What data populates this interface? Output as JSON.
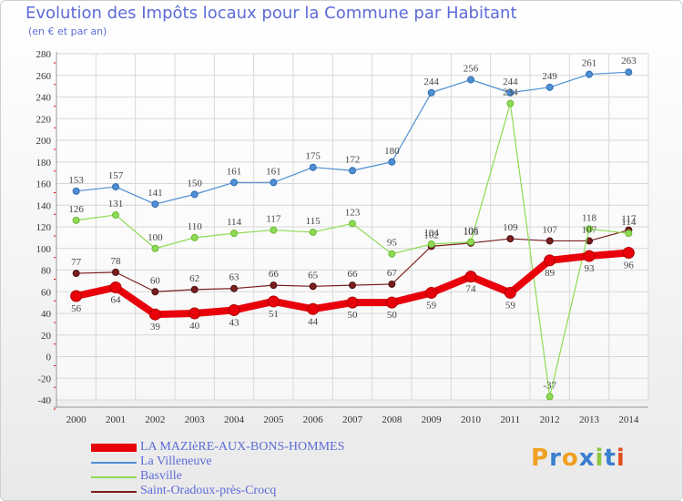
{
  "header": {
    "title": "Evolution des Impôts locaux pour la Commune par Habitant",
    "subtitle": "(en € et par an)"
  },
  "logo": {
    "text": "Proxiti",
    "letters": [
      "P",
      "r",
      "o",
      "x",
      "i",
      "t",
      "i"
    ],
    "colors": [
      "#f0a020",
      "#3a7fd0",
      "#f0a020",
      "#3a7fd0",
      "#8cc63f",
      "#3a7fd0",
      "#e05020"
    ]
  },
  "chart_data": {
    "type": "line",
    "title": "Evolution des Impôts locaux pour la Commune par Habitant",
    "subtitle": "(en € et par an)",
    "xlabel": "",
    "ylabel": "",
    "ylim": [
      -40,
      280
    ],
    "yticks": [
      -40,
      -20,
      0,
      20,
      40,
      60,
      80,
      100,
      120,
      140,
      160,
      180,
      200,
      220,
      240,
      260,
      280
    ],
    "categories": [
      "2000",
      "2001",
      "2002",
      "2003",
      "2004",
      "2005",
      "2006",
      "2007",
      "2008",
      "2009",
      "2010",
      "2011",
      "2012",
      "2013",
      "2014"
    ],
    "grid": true,
    "legend_position": "bottom-left",
    "series": [
      {
        "name": "LA MAZIèRE-AUX-BONS-HOMMES",
        "color": "#e8000b",
        "values": [
          56,
          64,
          39,
          40,
          43,
          51,
          44,
          50,
          50,
          59,
          74,
          59,
          89,
          93,
          96
        ],
        "labels": [
          "56",
          "64",
          "39",
          "40",
          "43",
          "51",
          "44",
          "50",
          "50",
          "59",
          "74",
          "59",
          "89",
          "93",
          "96"
        ]
      },
      {
        "name": "La Villeneuve",
        "color": "#4f8fd4",
        "values": [
          153,
          157,
          141,
          150,
          161,
          161,
          175,
          172,
          180,
          244,
          256,
          244,
          249,
          261,
          263
        ],
        "labels": [
          "153",
          "157",
          "141",
          "150",
          "161",
          "161",
          "175",
          "172",
          "180",
          "244",
          "256",
          "244",
          "249",
          "261",
          "263"
        ]
      },
      {
        "name": "Basville",
        "color": "#8fdb53",
        "values": [
          126,
          131,
          100,
          110,
          114,
          117,
          115,
          123,
          95,
          104,
          106,
          234,
          -37,
          118,
          114
        ],
        "labels": [
          "126",
          "131",
          "100",
          "110",
          "114",
          "117",
          "115",
          "123",
          "95",
          "104",
          "106",
          "234",
          "-37",
          "118",
          "114"
        ]
      },
      {
        "name": "Saint-Oradoux-près-Crocq",
        "color": "#7a1e1e",
        "values": [
          77,
          78,
          60,
          62,
          63,
          66,
          65,
          66,
          67,
          102,
          105,
          109,
          107,
          107,
          117
        ],
        "labels": [
          "77",
          "78",
          "60",
          "62",
          "63",
          "66",
          "65",
          "66",
          "67",
          "102",
          "105",
          "109",
          "107",
          "107",
          "117"
        ]
      }
    ]
  }
}
